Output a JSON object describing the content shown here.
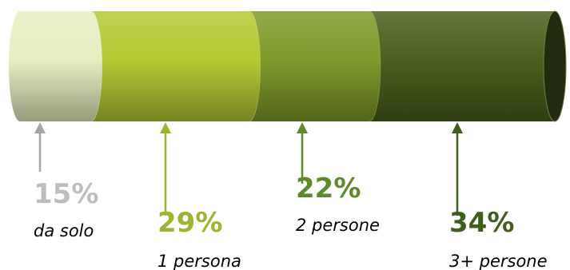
{
  "chart_data": {
    "type": "bar",
    "orientation": "horizontal-stacked-cylinder",
    "segments": [
      {
        "percent_label": "15%",
        "label": "da solo",
        "value": 15,
        "color": "#e6eec0",
        "text_color": "#bdbdbd",
        "arrow_color": "#a6a6a6"
      },
      {
        "percent_label": "29%",
        "label": "1 persona",
        "value": 29,
        "color": "#b5c934",
        "text_color": "#9bb52e",
        "arrow_color": "#9bb52e"
      },
      {
        "percent_label": "22%",
        "label": "2 persone",
        "value": 22,
        "color": "#7f9a2b",
        "text_color": "#5f8a2c",
        "arrow_color": "#5f8a2c"
      },
      {
        "percent_label": "34%",
        "label": "3+ persone",
        "value": 34,
        "color": "#4a5f1d",
        "text_color": "#3f5d1d",
        "arrow_color": "#3f5d1d"
      }
    ],
    "total": 100
  }
}
